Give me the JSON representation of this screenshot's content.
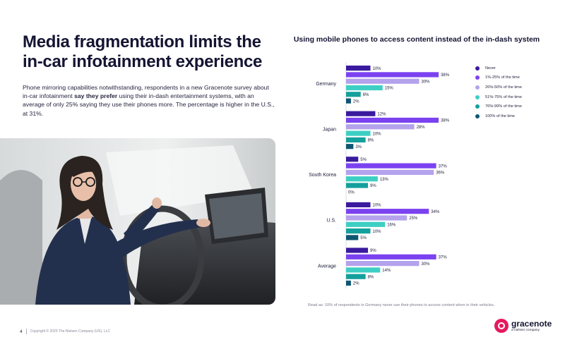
{
  "slide": {
    "title_lines": [
      "Media fragmentation limits the",
      "in-car infotainment experience"
    ],
    "body_part1": "Phone mirroring capabilities notwithstanding, respondents in a new Gracenote survey about in-car infotainment ",
    "body_bold": "say they prefer",
    "body_part2": " using their in-dash entertainment systems, with an average of only 25% saying they use their phones more. The percentage is higher in the U.S., at 31%.",
    "note": "Read as: 10% of respondents in Germany never use their phones to access content when in their vehicles.",
    "page_number": "4",
    "copyright": "Copyright © 2025 The Nielsen Company (US), LLC",
    "logo": {
      "name": "gracenote",
      "tagline": "a nielsen company",
      "color": "#e5195e"
    }
  },
  "chart_data": {
    "type": "bar",
    "orientation": "horizontal",
    "title": "Using mobile phones to access content instead of the in-dash system",
    "unit": "%",
    "categories": [
      "Germany",
      "Japan",
      "South Korea",
      "U.S.",
      "Average"
    ],
    "series": [
      {
        "name": "Never",
        "color": "#3a1a9e",
        "values": [
          10,
          12,
          5,
          10,
          9
        ]
      },
      {
        "name": "1%-25% of the time",
        "color": "#7b42f0",
        "values": [
          38,
          38,
          37,
          34,
          37
        ]
      },
      {
        "name": "26%-50% of the time",
        "color": "#b4a2ec",
        "values": [
          30,
          28,
          36,
          25,
          30
        ]
      },
      {
        "name": "51%-75% of the time",
        "color": "#3ecfc4",
        "values": [
          15,
          10,
          13,
          16,
          14
        ]
      },
      {
        "name": "76%-99% of the time",
        "color": "#14a09c",
        "values": [
          6,
          8,
          9,
          10,
          8
        ]
      },
      {
        "name": "100% of the time",
        "color": "#0e5672",
        "values": [
          2,
          3,
          0,
          5,
          2
        ]
      }
    ],
    "legend_position": "right",
    "grid": false
  }
}
